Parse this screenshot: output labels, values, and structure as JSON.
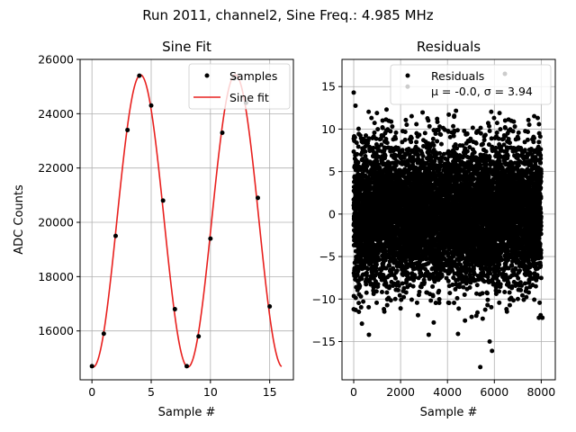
{
  "suptitle": "Run 2011, channel2, Sine Freq.: 4.985 MHz",
  "chart_data": [
    {
      "type": "line",
      "title": "Sine Fit",
      "xlabel": "Sample #",
      "ylabel": "ADC Counts",
      "xlim": [
        -1,
        17
      ],
      "ylim": [
        14200,
        26000
      ],
      "xticks": [
        0,
        5,
        10,
        15
      ],
      "yticks": [
        16000,
        18000,
        20000,
        22000,
        24000,
        26000
      ],
      "grid": true,
      "legend_position": "top-right",
      "series": [
        {
          "name": "Samples",
          "kind": "scatter",
          "color": "#000000",
          "x": [
            0,
            1,
            2,
            3,
            4,
            5,
            6,
            7,
            8,
            9,
            10,
            11,
            12,
            13,
            14,
            15
          ],
          "y": [
            14700,
            15900,
            19500,
            23400,
            25400,
            24300,
            20800,
            16800,
            14700,
            15800,
            19400,
            23300,
            25300,
            24400,
            20900,
            16900
          ]
        },
        {
          "name": "Sine fit",
          "kind": "line",
          "color": "#e8201e",
          "model": {
            "offset": 20050,
            "amplitude": 5380,
            "period": 8.0,
            "peak_at": 4.1,
            "x_start": 0,
            "x_end": 16
          }
        }
      ]
    },
    {
      "type": "scatter",
      "title": "Residuals",
      "xlabel": "Sample #",
      "ylabel": "",
      "xlim": [
        -500,
        8600
      ],
      "ylim": [
        -19.5,
        18.2
      ],
      "xticks": [
        0,
        2000,
        4000,
        6000,
        8000
      ],
      "yticks": [
        -15,
        -10,
        -5,
        0,
        5,
        10,
        15
      ],
      "grid": true,
      "legend_position": "top-right",
      "series": [
        {
          "name": "Residuals",
          "color": "#000000",
          "n_points": 8000,
          "mean": -0.0,
          "sigma": 3.94,
          "visible_outliers": [
            [
              0,
              14.3
            ],
            [
              2300,
              15.0
            ],
            [
              6450,
              16.5
            ],
            [
              1400,
              12.3
            ],
            [
              7850,
              11.3
            ],
            [
              3200,
              -14.2
            ],
            [
              4450,
              -14.1
            ],
            [
              5400,
              -18.0
            ],
            [
              5900,
              -16.1
            ],
            [
              5800,
              -15.0
            ],
            [
              650,
              -14.2
            ],
            [
              350,
              -12.9
            ],
            [
              7900,
              -12.2
            ],
            [
              8050,
              -12.2
            ],
            [
              0,
              -11.2
            ],
            [
              2000,
              -11.1
            ]
          ]
        }
      ],
      "legend_text": [
        "Residuals",
        "μ = -0.0, σ = 3.94"
      ]
    }
  ]
}
